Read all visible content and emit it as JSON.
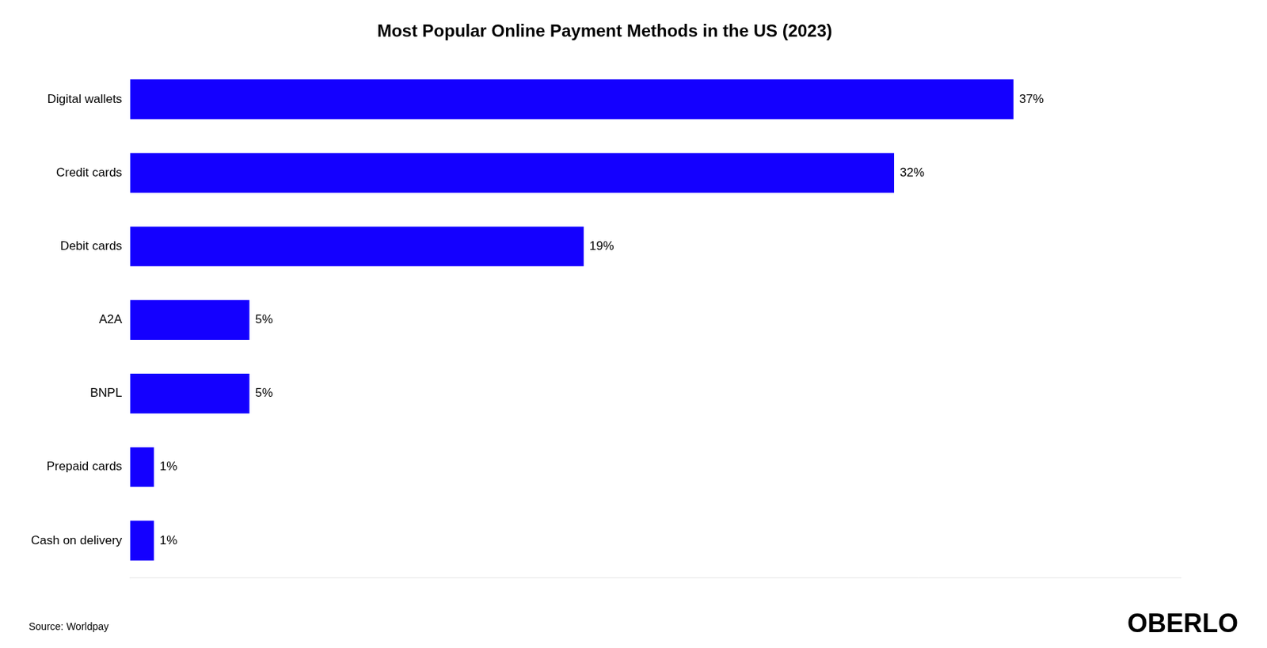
{
  "chart_data": {
    "type": "bar",
    "orientation": "horizontal",
    "title": "Most Popular Online Payment Methods in the US (2023)",
    "categories": [
      "Cash on delivery",
      "Prepaid cards",
      "BNPL",
      "A2A",
      "Debit cards",
      "Credit cards",
      "Digital wallets"
    ],
    "values": [
      1,
      1,
      5,
      5,
      19,
      32,
      37
    ],
    "value_labels": [
      "1%",
      "1%",
      "5%",
      "5%",
      "19%",
      "32%",
      "37%"
    ],
    "data_labels": true,
    "color": "#1400FF",
    "xlim": [
      0,
      44
    ],
    "tick_labels": "y",
    "grid": false,
    "annotations": [
      "Source: Worldpay",
      "OBERLO"
    ]
  }
}
